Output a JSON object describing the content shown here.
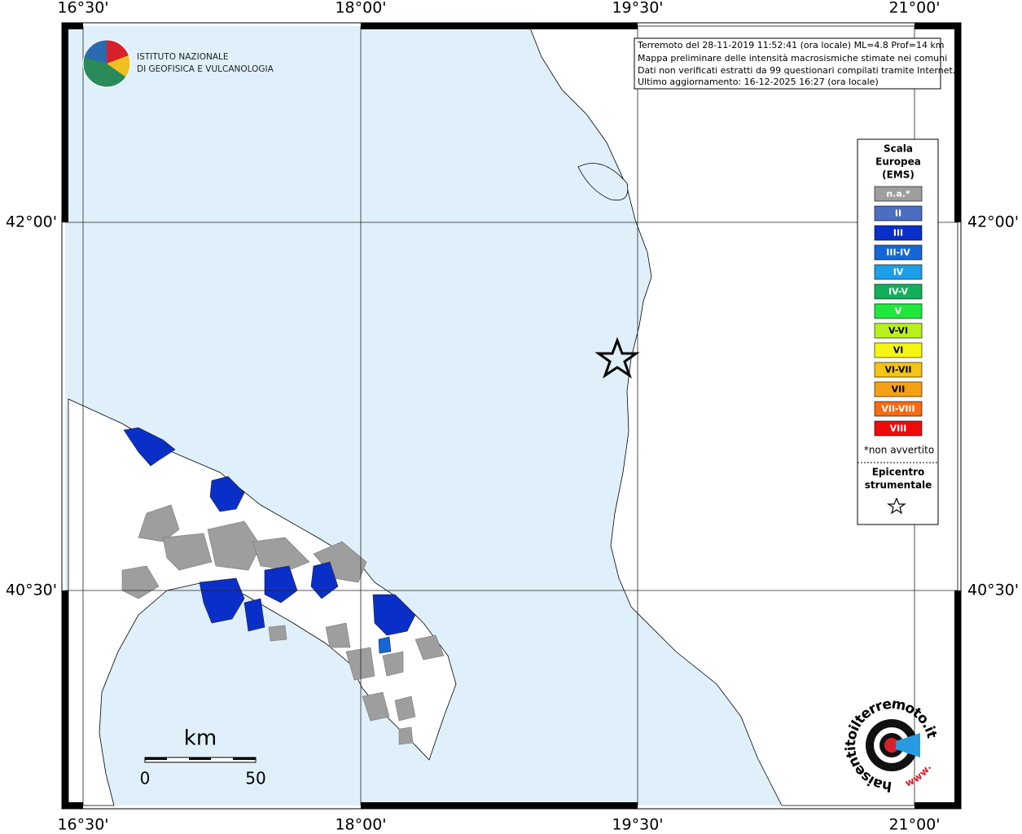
{
  "grid": {
    "longitudes": [
      "16°30'",
      "18°00'",
      "19°30'",
      "21°00'"
    ],
    "latitudes": [
      "42°00'",
      "40°30'"
    ]
  },
  "logo": {
    "line1": "ISTITUTO NAZIONALE",
    "line2": "DI GEOFISICA E VULCANOLOGIA"
  },
  "info": {
    "lines": [
      "Terremoto del 28-11-2019 11:52:41 (ora locale) ML=4.8 Prof=14 km",
      "Mappa preliminare delle intensità macrosismiche stimate nei comuni",
      "Dati non verificati estratti da 99 questionari compilati tramite Internet.",
      "Ultimo aggiornamento: 16-12-2025 16:27 (ora locale)"
    ]
  },
  "legend": {
    "title": [
      "Scala",
      "Europea",
      "(EMS)"
    ],
    "items": [
      {
        "label": "n.a.*",
        "color": "#9e9e9e"
      },
      {
        "label": "II",
        "color": "#4a6fc0"
      },
      {
        "label": "III",
        "color": "#0a2fc8"
      },
      {
        "label": "III-IV",
        "color": "#1467d6"
      },
      {
        "label": "IV",
        "color": "#1d9ee8"
      },
      {
        "label": "IV-V",
        "color": "#12b05a"
      },
      {
        "label": "V",
        "color": "#1ee83c"
      },
      {
        "label": "V-VI",
        "color": "#b8f01e"
      },
      {
        "label": "VI",
        "color": "#f5f514"
      },
      {
        "label": "VI-VII",
        "color": "#f5c414"
      },
      {
        "label": "VII",
        "color": "#f5a014"
      },
      {
        "label": "VII-VIII",
        "color": "#f56a14"
      },
      {
        "label": "VIII",
        "color": "#f00a0a"
      }
    ],
    "note": "*non avvertito",
    "epicentre": [
      "Epicentro",
      "strumentale"
    ]
  },
  "scale_bar": {
    "unit": "km",
    "start": 0,
    "end": 50
  },
  "badge": {
    "text": "haisentitoilterremoto.it",
    "prefix": "www."
  }
}
